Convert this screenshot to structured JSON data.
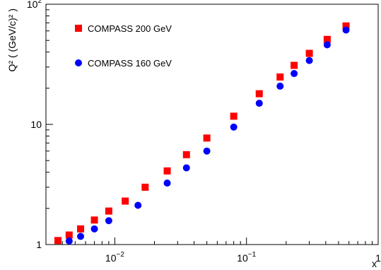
{
  "chart_data": {
    "type": "scatter",
    "title": "",
    "xlabel": "x",
    "ylabel": "Q² ( (GeV/c)² )",
    "xscale": "log",
    "yscale": "log",
    "xlim": [
      0.003,
      1
    ],
    "ylim": [
      1,
      100
    ],
    "grid": false,
    "legend_position": "top-left",
    "x_tick_labels": [
      {
        "value": 0.01,
        "label": "10",
        "exp": "−2"
      },
      {
        "value": 0.1,
        "label": "10",
        "exp": "−1"
      },
      {
        "value": 1,
        "label": "1",
        "exp": ""
      }
    ],
    "y_tick_labels": [
      {
        "value": 1,
        "label": "1",
        "exp": ""
      },
      {
        "value": 10,
        "label": "10",
        "exp": ""
      },
      {
        "value": 100,
        "label": "10",
        "exp": "2"
      }
    ],
    "series": [
      {
        "name": "COMPASS 200 GeV",
        "marker": "square",
        "color": "#ff0000",
        "points": [
          [
            0.0037,
            1.08
          ],
          [
            0.0045,
            1.2
          ],
          [
            0.0055,
            1.35
          ],
          [
            0.007,
            1.6
          ],
          [
            0.009,
            1.9
          ],
          [
            0.012,
            2.3
          ],
          [
            0.017,
            3.0
          ],
          [
            0.025,
            4.1
          ],
          [
            0.035,
            5.6
          ],
          [
            0.05,
            7.7
          ],
          [
            0.08,
            11.7
          ],
          [
            0.125,
            18.0
          ],
          [
            0.18,
            24.8
          ],
          [
            0.23,
            31.0
          ],
          [
            0.3,
            39.0
          ],
          [
            0.41,
            51.0
          ],
          [
            0.57,
            66.0
          ]
        ]
      },
      {
        "name": "COMPASS 160 GeV",
        "marker": "circle",
        "color": "#0000ff",
        "points": [
          [
            0.0045,
            1.07
          ],
          [
            0.0055,
            1.17
          ],
          [
            0.007,
            1.35
          ],
          [
            0.009,
            1.58
          ],
          [
            0.015,
            2.12
          ],
          [
            0.025,
            3.25
          ],
          [
            0.035,
            4.35
          ],
          [
            0.05,
            6.0
          ],
          [
            0.08,
            9.5
          ],
          [
            0.125,
            15.0
          ],
          [
            0.18,
            20.8
          ],
          [
            0.23,
            26.5
          ],
          [
            0.3,
            34.0
          ],
          [
            0.41,
            46.0
          ],
          [
            0.57,
            61.0
          ]
        ]
      }
    ]
  }
}
